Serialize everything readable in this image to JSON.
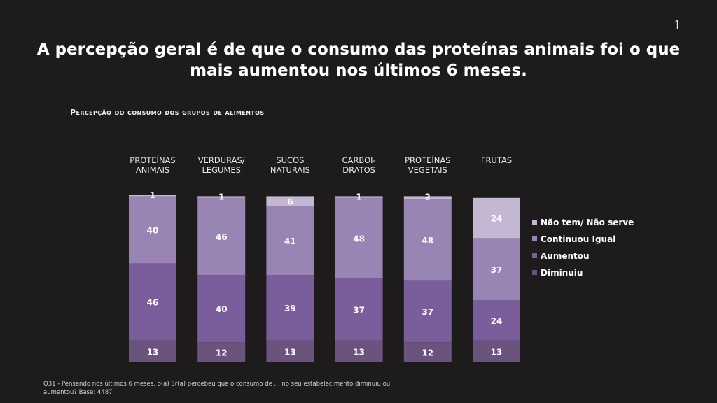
{
  "page_number": "1",
  "title": "A percepção geral é de que o consumo das proteínas animais foi o que mais aumentou nos últimos 6 meses.",
  "subtitle": "Percepção do consumo dos grupos de alimentos",
  "footnote": "Q31 - Pensando nos últimos 6 meses, o(a) Sr(a) percebeu que o consumo de ... no seu estabelecimento diminuiu ou aumentou? Base: 4487",
  "colors": {
    "background": "#1e1b1c",
    "nao_tem": "#c3b7d1",
    "continuou_igual": "#9885b4",
    "aumentou": "#7a5e9c",
    "diminuiu": "#6a537c"
  },
  "chart_data": {
    "type": "bar",
    "stacked": true,
    "categories": [
      [
        "PROTEÍNAS",
        "ANIMAIS"
      ],
      [
        "VERDURAS/",
        "LEGUMES"
      ],
      [
        "SUCOS",
        "NATURAIS"
      ],
      [
        "CARBOI-",
        "DRATOS"
      ],
      [
        "PROTEÍNAS",
        "VEGETAIS"
      ],
      [
        "FRUTAS"
      ]
    ],
    "series": [
      {
        "name": "Diminuiu",
        "color_key": "diminuiu",
        "values": [
          13,
          12,
          13,
          13,
          12,
          13
        ]
      },
      {
        "name": "Aumentou",
        "color_key": "aumentou",
        "values": [
          46,
          40,
          39,
          37,
          37,
          24
        ]
      },
      {
        "name": "Continuou Igual",
        "color_key": "continuou_igual",
        "values": [
          40,
          46,
          41,
          48,
          48,
          37
        ]
      },
      {
        "name": "Não tem/ Não serve",
        "color_key": "nao_tem",
        "values": [
          1,
          1,
          6,
          1,
          2,
          24
        ]
      }
    ],
    "legend_order": [
      "Não tem/ Não serve",
      "Continuou Igual",
      "Aumentou",
      "Diminuiu"
    ],
    "legend_position": "right",
    "ylim": [
      0,
      100
    ],
    "grid": false
  }
}
